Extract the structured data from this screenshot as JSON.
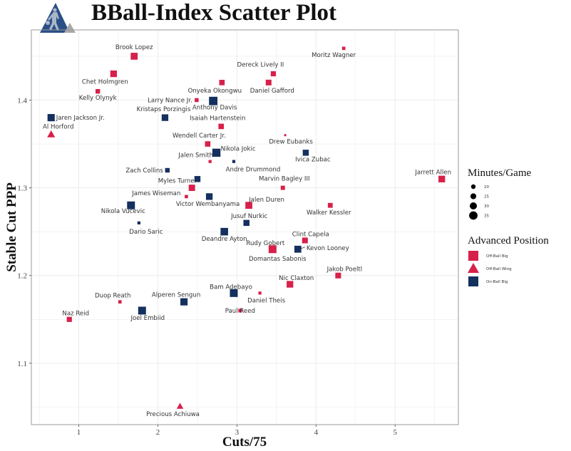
{
  "header": {
    "title": "BBall-Index Scatter Plot",
    "logo_icon": "basketball-player-triangle-logo"
  },
  "colors": {
    "off_ball_big": "#d7204a",
    "off_ball_wing": "#d7204a",
    "on_ball_big": "#13305e",
    "grid": "#ececec",
    "frame": "#999999"
  },
  "chart_data": {
    "type": "scatter",
    "title": "BBall-Index Scatter Plot",
    "xlabel": "Cuts/75",
    "ylabel": "Stable Cut PPP",
    "xlim": [
      0.4,
      5.8
    ],
    "ylim": [
      1.03,
      1.48
    ],
    "x_ticks": [
      "1",
      "2",
      "3",
      "4",
      "5"
    ],
    "y_ticks": [
      "1.1",
      "1.2",
      "1.3",
      "1.4"
    ],
    "grid": true,
    "legend": {
      "placement": "right",
      "size_title": "Minutes/Game",
      "size_entries": [
        {
          "label": "20",
          "value": 20
        },
        {
          "label": "25",
          "value": 25
        },
        {
          "label": "30",
          "value": 30
        },
        {
          "label": "35",
          "value": 35
        }
      ],
      "shape_title": "Advanced Position",
      "shape_entries": [
        {
          "label": "Off-Ball  Big",
          "shape": "square",
          "color": "#d7204a"
        },
        {
          "label": "Off-Ball  Wing",
          "shape": "triangle",
          "color": "#d7204a"
        },
        {
          "label": "On-Ball  Big",
          "shape": "square",
          "color": "#13305e"
        }
      ]
    },
    "points": [
      {
        "name": "Brook Lopez",
        "x": 1.7,
        "y": 1.45,
        "minutes": 30,
        "position": "Off-Ball Big"
      },
      {
        "name": "Moritz Wagner",
        "x": 4.35,
        "y": 1.459,
        "minutes": 18,
        "position": "Off-Ball Big"
      },
      {
        "name": "Chet Holmgren",
        "x": 1.44,
        "y": 1.43,
        "minutes": 29,
        "position": "Off-Ball Big"
      },
      {
        "name": "Dereck Lively II",
        "x": 3.46,
        "y": 1.43,
        "minutes": 24,
        "position": "Off-Ball Big"
      },
      {
        "name": "Onyeka Okongwu",
        "x": 2.81,
        "y": 1.42,
        "minutes": 25,
        "position": "Off-Ball Big"
      },
      {
        "name": "Daniel Gafford",
        "x": 3.4,
        "y": 1.42,
        "minutes": 26,
        "position": "Off-Ball Big"
      },
      {
        "name": "Kelly Olynyk",
        "x": 1.24,
        "y": 1.41,
        "minutes": 22,
        "position": "Off-Ball Big"
      },
      {
        "name": "Larry Nance Jr.",
        "x": 2.49,
        "y": 1.4,
        "minutes": 20,
        "position": "Off-Ball Big"
      },
      {
        "name": "Anthony Davis",
        "x": 2.7,
        "y": 1.399,
        "minutes": 35,
        "position": "On-Ball Big"
      },
      {
        "name": "Jaren Jackson Jr.",
        "x": 0.65,
        "y": 1.38,
        "minutes": 31,
        "position": "On-Ball Big"
      },
      {
        "name": "Kristaps Porzingis",
        "x": 2.09,
        "y": 1.38,
        "minutes": 29,
        "position": "On-Ball Big"
      },
      {
        "name": "Isaiah Hartenstein",
        "x": 2.8,
        "y": 1.37,
        "minutes": 25,
        "position": "Off-Ball Big"
      },
      {
        "name": "Al Horford",
        "x": 0.65,
        "y": 1.361,
        "minutes": 27,
        "position": "Off-Ball Wing"
      },
      {
        "name": "Drew Eubanks",
        "x": 3.61,
        "y": 1.36,
        "minutes": 14,
        "position": "Off-Ball Big"
      },
      {
        "name": "Wendell Carter Jr.",
        "x": 2.63,
        "y": 1.35,
        "minutes": 25,
        "position": "Off-Ball Big"
      },
      {
        "name": "Nikola Jokic",
        "x": 2.74,
        "y": 1.34,
        "minutes": 34,
        "position": "On-Ball Big"
      },
      {
        "name": "Ivica Zubac",
        "x": 3.87,
        "y": 1.34,
        "minutes": 27,
        "position": "On-Ball Big"
      },
      {
        "name": "Jalen Smith",
        "x": 2.66,
        "y": 1.33,
        "minutes": 17,
        "position": "Off-Ball Big"
      },
      {
        "name": "Andre Drummond",
        "x": 2.96,
        "y": 1.33,
        "minutes": 17,
        "position": "On-Ball Big"
      },
      {
        "name": "Zach Collins",
        "x": 2.12,
        "y": 1.32,
        "minutes": 22,
        "position": "On-Ball Big"
      },
      {
        "name": "Myles Turner",
        "x": 2.5,
        "y": 1.31,
        "minutes": 27,
        "position": "On-Ball Big"
      },
      {
        "name": "",
        "x": 2.43,
        "y": 1.3,
        "minutes": 28,
        "position": "Off-Ball Big"
      },
      {
        "name": "Marvin Bagley III",
        "x": 3.58,
        "y": 1.3,
        "minutes": 21,
        "position": "Off-Ball Big"
      },
      {
        "name": "Jarrett Allen",
        "x": 5.59,
        "y": 1.31,
        "minutes": 29,
        "position": "Off-Ball Big"
      },
      {
        "name": "James Wiseman",
        "x": 2.36,
        "y": 1.29,
        "minutes": 18,
        "position": "Off-Ball Big"
      },
      {
        "name": "Victor Wembanyama",
        "x": 2.65,
        "y": 1.29,
        "minutes": 29,
        "position": "On-Ball Big"
      },
      {
        "name": "Jalen Duren",
        "x": 3.15,
        "y": 1.28,
        "minutes": 30,
        "position": "Off-Ball Big"
      },
      {
        "name": "Walker Kessler",
        "x": 4.18,
        "y": 1.28,
        "minutes": 23,
        "position": "Off-Ball Big"
      },
      {
        "name": "Nikola Vucevic",
        "x": 1.66,
        "y": 1.28,
        "minutes": 33,
        "position": "On-Ball Big"
      },
      {
        "name": "Jusuf Nurkic",
        "x": 3.12,
        "y": 1.26,
        "minutes": 27,
        "position": "On-Ball Big"
      },
      {
        "name": "Dario Saric",
        "x": 1.76,
        "y": 1.26,
        "minutes": 17,
        "position": "On-Ball Big"
      },
      {
        "name": "Deandre Ayton",
        "x": 2.84,
        "y": 1.25,
        "minutes": 32,
        "position": "On-Ball Big"
      },
      {
        "name": "Clint Capela",
        "x": 3.86,
        "y": 1.24,
        "minutes": 26,
        "position": "Off-Ball Big"
      },
      {
        "name": "Rudy Gobert",
        "x": 3.45,
        "y": 1.23,
        "minutes": 33,
        "position": "Off-Ball Big"
      },
      {
        "name": "Domantas Sabonis",
        "x": 3.45,
        "y": 1.229,
        "minutes": 20,
        "position": "Off-Ball Big"
      },
      {
        "name": "Kevon Looney",
        "x": 3.77,
        "y": 1.23,
        "minutes": 30,
        "position": "On-Ball Big"
      },
      {
        "name": "Jakob Poeltl",
        "x": 4.28,
        "y": 1.2,
        "minutes": 26,
        "position": "Off-Ball Big"
      },
      {
        "name": "Nic Claxton",
        "x": 3.67,
        "y": 1.19,
        "minutes": 29,
        "position": "Off-Ball Big"
      },
      {
        "name": "Bam Adebayo",
        "x": 2.96,
        "y": 1.18,
        "minutes": 33,
        "position": "On-Ball Big"
      },
      {
        "name": "Daniel Theis",
        "x": 3.29,
        "y": 1.18,
        "minutes": 17,
        "position": "Off-Ball Big"
      },
      {
        "name": "Duop Reath",
        "x": 1.52,
        "y": 1.17,
        "minutes": 18,
        "position": "Off-Ball Big"
      },
      {
        "name": "Alperen Sengun",
        "x": 2.33,
        "y": 1.17,
        "minutes": 31,
        "position": "On-Ball Big"
      },
      {
        "name": "Paul Reed",
        "x": 3.04,
        "y": 1.16,
        "minutes": 19,
        "position": "Off-Ball Big"
      },
      {
        "name": "Joel Embiid",
        "x": 1.8,
        "y": 1.16,
        "minutes": 33,
        "position": "On-Ball Big"
      },
      {
        "name": "Naz Reid",
        "x": 0.88,
        "y": 1.15,
        "minutes": 24,
        "position": "Off-Ball Big"
      },
      {
        "name": "Precious Achiuwa",
        "x": 2.28,
        "y": 1.051,
        "minutes": 24,
        "position": "Off-Ball Wing"
      }
    ]
  }
}
